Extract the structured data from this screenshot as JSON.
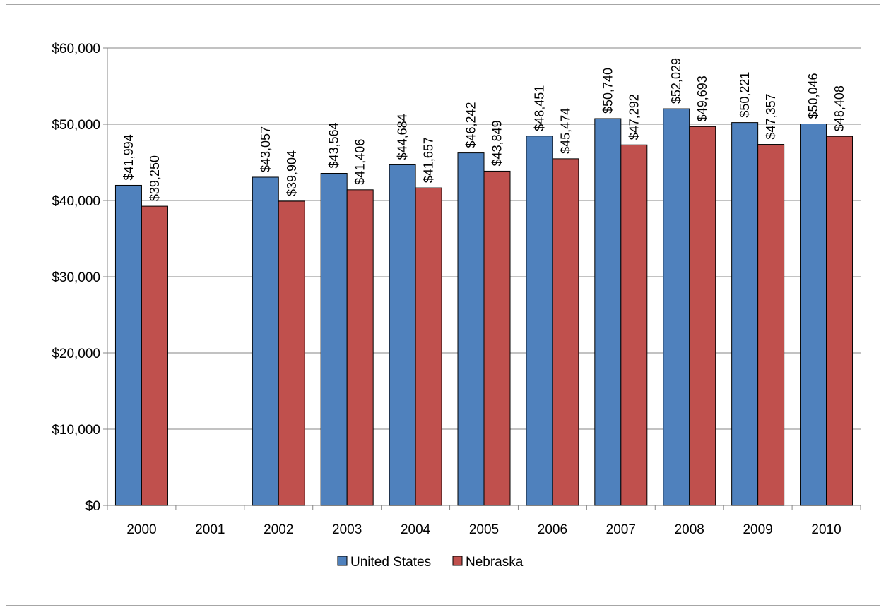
{
  "chart_data": {
    "type": "bar",
    "categories": [
      "2000",
      "2001",
      "2002",
      "2003",
      "2004",
      "2005",
      "2006",
      "2007",
      "2008",
      "2009",
      "2010"
    ],
    "series": [
      {
        "name": "United States",
        "color": "#4f81bd",
        "values": [
          41994,
          null,
          43057,
          43564,
          44684,
          46242,
          48451,
          50740,
          52029,
          50221,
          50046
        ],
        "labels": [
          "$41,994",
          "",
          "$43,057",
          "$43,564",
          "$44,684",
          "$46,242",
          "$48,451",
          "$50,740",
          "$52,029",
          "$50,221",
          "$50,046"
        ]
      },
      {
        "name": "Nebraska",
        "color": "#c0504d",
        "values": [
          39250,
          null,
          39904,
          41406,
          41657,
          43849,
          45474,
          47292,
          49693,
          47357,
          48408
        ],
        "labels": [
          "$39,250",
          "",
          "$39,904",
          "$41,406",
          "$41,657",
          "$43,849",
          "$45,474",
          "$47,292",
          "$49,693",
          "$47,357",
          "$48,408"
        ]
      }
    ],
    "ylim": [
      0,
      60000
    ],
    "yticks": [
      0,
      10000,
      20000,
      30000,
      40000,
      50000,
      60000
    ],
    "ytick_labels": [
      "$0",
      "$10,000",
      "$20,000",
      "$30,000",
      "$40,000",
      "$50,000",
      "$60,000"
    ],
    "grid": true,
    "legend_position": "bottom",
    "title": "",
    "xlabel": "",
    "ylabel": ""
  }
}
